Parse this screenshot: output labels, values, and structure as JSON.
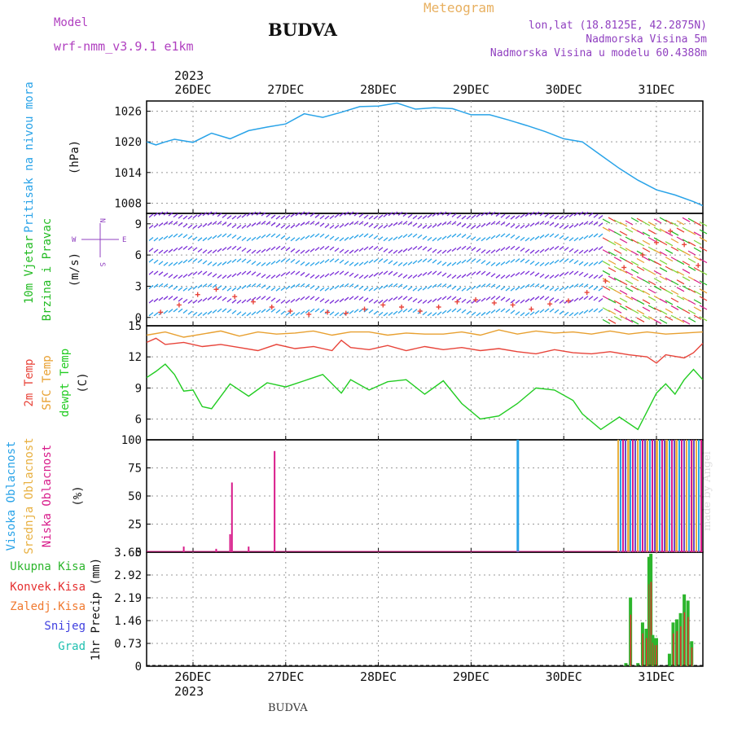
{
  "header": {
    "model_label": "Model",
    "model_name": "wrf-nmm_v3.9.1  e1km",
    "title": "BUDVA",
    "subtitle": "Meteogram",
    "coords": "lon,lat (18.8125E, 42.2875N)",
    "altitude": "Nadmorska Visina 5m",
    "model_altitude": "Nadmorska Visina u modelu 60.4388m",
    "footer_station": "BUDVA",
    "credit": "made by Angel",
    "year_top": "2023",
    "year_bottom": "2023"
  },
  "colors": {
    "pressure": "#29a3e8",
    "temp2m": "#e8443a",
    "sfc_temp": "#e8a030",
    "dewpoint": "#22cc22",
    "high_cloud": "#29a3e8",
    "mid_cloud": "#e8b040",
    "low_cloud": "#d81b8a",
    "total_precip": "#2cb52c",
    "conv_precip": "#e53030",
    "frozen_precip": "#f07a30",
    "snow": "#4040e0",
    "hail": "#20c0b0",
    "model_label": "#b040c0",
    "subtitle": "#e8b060",
    "info": "#9040c0",
    "wind10": "#22bb22",
    "wind_label": "#22bb22",
    "wind_mix": "#e8a030"
  },
  "chart_data": [
    {
      "type": "line",
      "panel": "pressure",
      "ylabel_title": "Pritisak na nivou mora",
      "ylabel_unit": "(hPa)",
      "ylim": [
        1006,
        1028
      ],
      "yticks": [
        1008,
        1014,
        1020,
        1026
      ],
      "grid": true,
      "x_days": [
        "26DEC",
        "27DEC",
        "28DEC",
        "29DEC",
        "30DEC",
        "31DEC"
      ],
      "series": [
        {
          "x": [
            -0.5,
            -0.4,
            -0.3,
            -0.2,
            0.0,
            0.2,
            0.4,
            0.6,
            0.8,
            1.0,
            1.2,
            1.4,
            1.6,
            1.8,
            2.0,
            2.2,
            2.4,
            2.6,
            2.8,
            3.0,
            3.2,
            3.4,
            3.6,
            3.8,
            4.0,
            4.2,
            4.4,
            4.6,
            4.8,
            5.0,
            5.2,
            5.4,
            5.5
          ],
          "values": [
            1020.0,
            1019.4,
            1020.0,
            1020.5,
            1019.9,
            1021.7,
            1020.6,
            1022.2,
            1022.9,
            1023.5,
            1025.5,
            1024.8,
            1025.8,
            1026.9,
            1027.0,
            1027.6,
            1026.4,
            1026.7,
            1026.5,
            1025.3,
            1025.3,
            1024.3,
            1023.2,
            1022.0,
            1020.6,
            1020.0,
            1017.4,
            1014.8,
            1012.5,
            1010.6,
            1009.6,
            1008.3,
            1007.5
          ]
        }
      ]
    },
    {
      "type": "scatter",
      "panel": "wind",
      "ylabel_title": "10m Vjetar",
      "ylabel_title2": "Brzina i Pravac",
      "ylabel_unit": "(m/s)",
      "compass": [
        "W",
        "E",
        "N",
        "S"
      ],
      "ylim": [
        -0.8,
        10
      ],
      "yticks": [
        0,
        3,
        6,
        9
      ],
      "grid": true,
      "series": [
        {
          "name": "wind speed",
          "x": [
            -0.35,
            -0.15,
            0.05,
            0.25,
            0.45,
            0.65,
            0.85,
            1.05,
            1.25,
            1.45,
            1.65,
            1.85,
            2.05,
            2.25,
            2.45,
            2.65,
            2.85,
            3.05,
            3.25,
            3.45,
            3.65,
            3.85,
            4.05,
            4.25,
            4.45,
            4.65,
            4.85,
            5.0,
            5.15,
            5.3,
            5.45
          ],
          "values": [
            0.5,
            1.2,
            2.2,
            2.7,
            2.0,
            1.5,
            1.0,
            0.6,
            0.3,
            0.5,
            0.4,
            0.8,
            1.2,
            1.0,
            0.6,
            1.0,
            1.5,
            1.7,
            1.4,
            1.2,
            0.8,
            1.3,
            1.6,
            2.4,
            3.5,
            4.8,
            6.0,
            7.2,
            8.3,
            7.0,
            5.0
          ]
        }
      ]
    },
    {
      "type": "line",
      "panel": "temperature",
      "ylabel_title": "2m Temp",
      "ylabel_title2": "SFC Temp",
      "ylabel_title3": "dewpt Temp",
      "ylabel_unit": "(C)",
      "ylim": [
        4,
        15
      ],
      "yticks": [
        6,
        9,
        12,
        15
      ],
      "grid": true,
      "series": [
        {
          "name": "SFC Temp",
          "x": [
            -0.5,
            -0.3,
            -0.1,
            0.1,
            0.3,
            0.5,
            0.7,
            0.9,
            1.1,
            1.3,
            1.5,
            1.7,
            1.9,
            2.1,
            2.3,
            2.5,
            2.7,
            2.9,
            3.1,
            3.3,
            3.5,
            3.7,
            3.9,
            4.1,
            4.3,
            4.5,
            4.7,
            4.9,
            5.1,
            5.3,
            5.5
          ],
          "values": [
            14.1,
            14.4,
            13.9,
            14.2,
            14.5,
            14.0,
            14.4,
            14.2,
            14.3,
            14.5,
            14.1,
            14.4,
            14.4,
            14.1,
            14.3,
            14.2,
            14.2,
            14.4,
            14.1,
            14.6,
            14.2,
            14.5,
            14.3,
            14.4,
            14.2,
            14.5,
            14.2,
            14.4,
            14.2,
            14.3,
            14.4
          ]
        },
        {
          "name": "2m Temp",
          "x": [
            -0.5,
            -0.4,
            -0.3,
            -0.1,
            0.1,
            0.3,
            0.5,
            0.7,
            0.9,
            1.1,
            1.3,
            1.5,
            1.6,
            1.7,
            1.9,
            2.1,
            2.3,
            2.5,
            2.7,
            2.9,
            3.1,
            3.3,
            3.5,
            3.7,
            3.9,
            4.1,
            4.3,
            4.5,
            4.7,
            4.9,
            5.0,
            5.1,
            5.3,
            5.4,
            5.5
          ],
          "values": [
            13.4,
            13.8,
            13.2,
            13.4,
            13.0,
            13.2,
            12.9,
            12.6,
            13.2,
            12.8,
            13.0,
            12.6,
            13.6,
            12.9,
            12.7,
            13.1,
            12.6,
            13.0,
            12.7,
            12.9,
            12.6,
            12.8,
            12.5,
            12.3,
            12.7,
            12.4,
            12.3,
            12.5,
            12.2,
            12.0,
            11.4,
            12.2,
            11.9,
            12.4,
            13.3
          ]
        },
        {
          "name": "dewpt Temp",
          "x": [
            -0.5,
            -0.4,
            -0.3,
            -0.2,
            -0.1,
            0.0,
            0.1,
            0.2,
            0.4,
            0.6,
            0.8,
            1.0,
            1.2,
            1.4,
            1.6,
            1.7,
            1.9,
            2.1,
            2.3,
            2.5,
            2.7,
            2.9,
            3.1,
            3.3,
            3.5,
            3.7,
            3.9,
            4.1,
            4.2,
            4.4,
            4.6,
            4.8,
            5.0,
            5.1,
            5.2,
            5.3,
            5.4,
            5.5
          ],
          "values": [
            10.0,
            10.6,
            11.3,
            10.3,
            8.7,
            8.8,
            7.2,
            7.0,
            9.4,
            8.2,
            9.5,
            9.1,
            9.7,
            10.3,
            8.5,
            9.8,
            8.8,
            9.6,
            9.8,
            8.4,
            9.7,
            7.5,
            6.0,
            6.3,
            7.5,
            9.0,
            8.8,
            7.8,
            6.5,
            5.0,
            6.2,
            5.0,
            8.5,
            9.4,
            8.4,
            9.8,
            10.8,
            9.8
          ]
        }
      ]
    },
    {
      "type": "bar",
      "panel": "cloud",
      "ylabel_title": "Visoka Oblacnost",
      "ylabel_title2": "Srednja Oblacnost",
      "ylabel_title3": "Niska Oblacnost",
      "ylabel_unit": "(%)",
      "ylim": [
        0,
        100
      ],
      "yticks": [
        0,
        25,
        50,
        75,
        100
      ],
      "grid": true,
      "series": [
        {
          "name": "Niska Oblacnost",
          "x": [
            -0.1,
            0.25,
            0.4,
            0.42,
            0.6,
            0.88
          ],
          "values": [
            5,
            3,
            16,
            62,
            5,
            90
          ]
        },
        {
          "name": "Visoka Oblacnost",
          "x": [
            3.5
          ],
          "values": [
            100
          ]
        },
        {
          "name": "Srednja Oblacnost",
          "x": [
            4.7,
            4.8,
            4.9,
            5.0,
            5.1,
            5.2,
            5.3,
            5.4
          ],
          "values": [
            100,
            100,
            100,
            100,
            100,
            100,
            100,
            100
          ]
        }
      ]
    },
    {
      "type": "bar",
      "panel": "precip",
      "ylabel_title": "1hr Precip",
      "ylabel_unit": "(mm)",
      "legend_labels": [
        "Ukupna Kisa",
        "Konvek.Kisa",
        "Zaledj.Kisa",
        "Snijeg",
        "Grad"
      ],
      "ylim": [
        0,
        3.65
      ],
      "yticks": [
        0,
        0.73,
        1.46,
        2.19,
        2.92,
        3.65
      ],
      "grid": true,
      "categories_x": [
        4.67,
        4.72,
        4.8,
        4.85,
        4.89,
        4.92,
        4.94,
        4.96,
        4.98,
        5.0,
        5.14,
        5.18,
        5.22,
        5.26,
        5.3,
        5.34,
        5.38
      ],
      "series": [
        {
          "name": "Ukupna Kisa",
          "values": [
            0.1,
            2.2,
            0.1,
            1.4,
            1.2,
            3.5,
            3.6,
            1.0,
            0.9,
            0.9,
            0.4,
            1.4,
            1.5,
            1.7,
            2.3,
            2.1,
            0.8
          ]
        }
      ]
    }
  ]
}
